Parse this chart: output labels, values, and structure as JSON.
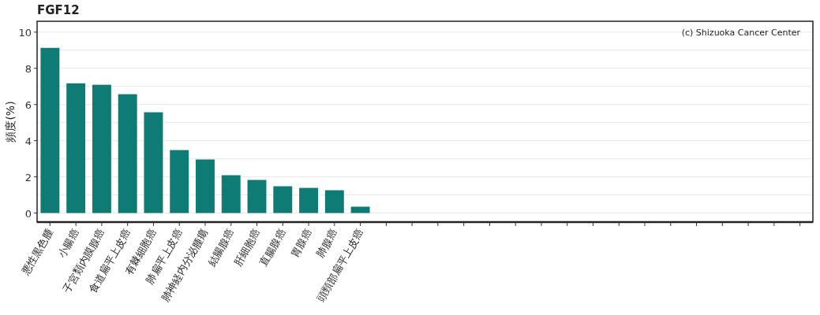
{
  "chart_data": {
    "type": "bar",
    "title": "FGF12",
    "ylabel": "頻度(%)",
    "categories": [
      "悪性黒色腫",
      "小腸癌",
      "子宮類内膜腺癌",
      "食道扁平上皮癌",
      "有棘細胞癌",
      "肺扁平上皮癌",
      "肺神経内分泌腫瘍",
      "結腸腺癌",
      "肝細胞癌",
      "直腸腺癌",
      "胃腺癌",
      "肺腺癌",
      "頭頸部扁平上皮癌",
      null,
      null,
      null,
      null,
      null,
      null,
      null,
      null,
      null,
      null,
      null,
      null,
      null,
      null,
      null,
      null,
      null
    ],
    "values": [
      9.13,
      7.17,
      7.09,
      6.57,
      5.57,
      3.48,
      2.96,
      2.09,
      1.83,
      1.48,
      1.39,
      1.26,
      0.35,
      null,
      null,
      null,
      null,
      null,
      null,
      null,
      null,
      null,
      null,
      null,
      null,
      null,
      null,
      null,
      null,
      null
    ],
    "color": "#0e7c74",
    "ylim": [
      -0.5,
      10.6
    ],
    "yticks": [
      0,
      {
        "value": 1,
        "label": null
      },
      2,
      {
        "value": 3,
        "label": null
      },
      4,
      {
        "value": 5,
        "label": null
      },
      6,
      {
        "value": 7,
        "label": null
      },
      8,
      {
        "value": 9,
        "label": null
      },
      10
    ],
    "grid": "y",
    "annotations": [
      "(c) Shizuoka Cancer Center"
    ]
  }
}
